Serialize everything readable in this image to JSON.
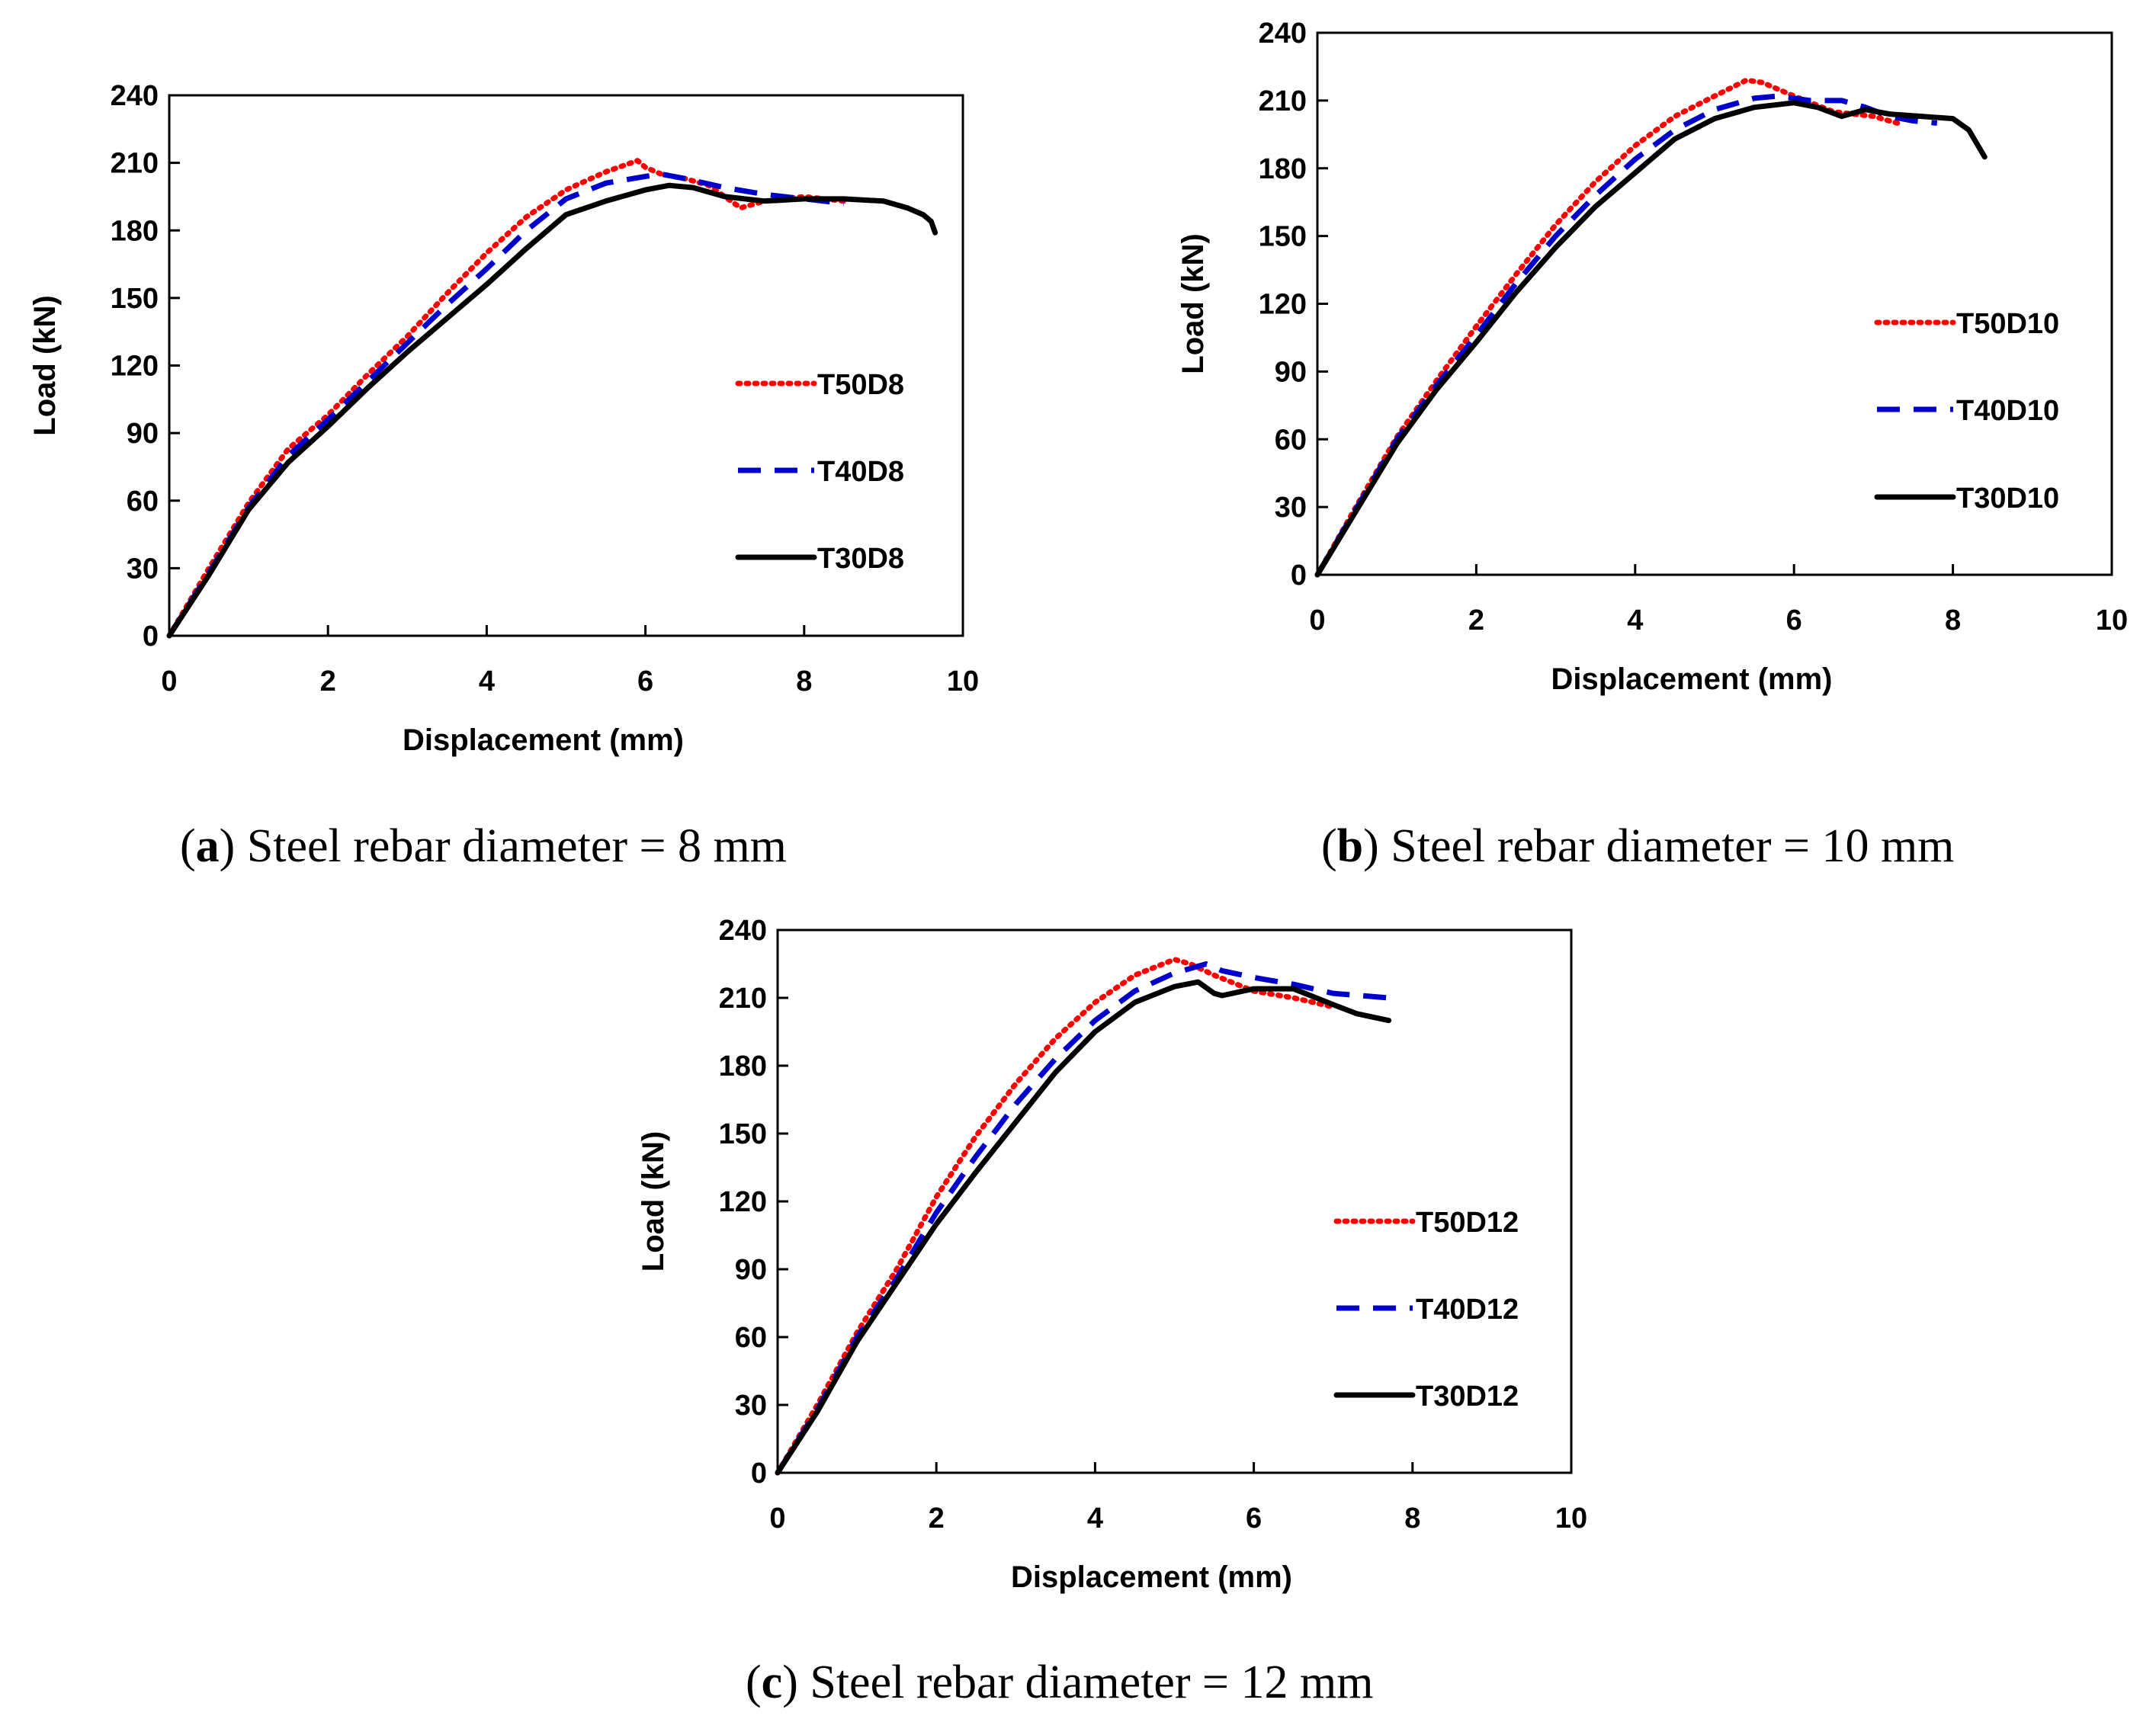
{
  "figure": {
    "captions": [
      {
        "letter": "a",
        "text": "Steel rebar diameter = 8 mm"
      },
      {
        "letter": "b",
        "text": "Steel rebar diameter = 10 mm"
      },
      {
        "letter": "c",
        "text": "Steel rebar diameter = 12 mm"
      }
    ]
  },
  "chart_data": [
    {
      "type": "line",
      "id": "a",
      "xlabel": "Displacement (mm)",
      "ylabel": "Load (kN)",
      "xlim": [
        0,
        10
      ],
      "ylim": [
        0,
        240
      ],
      "xticks": [
        0,
        2,
        4,
        6,
        8,
        10
      ],
      "yticks": [
        0,
        30,
        60,
        90,
        120,
        150,
        180,
        210,
        240
      ],
      "legend_position": "right",
      "series": [
        {
          "name": "T50D8",
          "color": "#ff0000",
          "style": "dotted",
          "x": [
            0,
            0.5,
            1.0,
            1.5,
            2.0,
            2.5,
            3.0,
            3.5,
            4.0,
            4.5,
            5.0,
            5.5,
            5.9,
            6.0,
            6.2,
            6.5,
            6.8,
            7.0,
            7.2,
            7.5,
            8.0,
            8.5
          ],
          "y": [
            0,
            30,
            59,
            83,
            98,
            116,
            133,
            152,
            170,
            186,
            198,
            206,
            211,
            208,
            205,
            203,
            200,
            195,
            190,
            193,
            195,
            193
          ]
        },
        {
          "name": "T40D8",
          "color": "#0000cc",
          "style": "dashed",
          "x": [
            0,
            0.5,
            1.0,
            1.5,
            2.0,
            2.5,
            3.0,
            3.5,
            4.0,
            4.5,
            5.0,
            5.5,
            6.0,
            6.2,
            6.5,
            7.0,
            7.5,
            8.0,
            8.5
          ],
          "y": [
            0,
            28,
            57,
            80,
            96,
            113,
            130,
            147,
            163,
            180,
            194,
            201,
            204,
            205,
            203,
            199,
            196,
            194,
            192
          ]
        },
        {
          "name": "T30D8",
          "color": "#000000",
          "style": "solid",
          "x": [
            0,
            0.5,
            1.0,
            1.5,
            2.0,
            2.5,
            3.0,
            3.5,
            4.0,
            4.5,
            4.8,
            5.0,
            5.5,
            6.0,
            6.3,
            6.6,
            7.0,
            7.5,
            8.0,
            8.5,
            9.0,
            9.3,
            9.5,
            9.6,
            9.65
          ],
          "y": [
            0,
            27,
            56,
            77,
            93,
            110,
            126,
            141,
            156,
            172,
            181,
            187,
            193,
            198,
            200,
            199,
            195,
            193,
            194,
            194,
            193,
            190,
            187,
            184,
            179
          ]
        }
      ]
    },
    {
      "type": "line",
      "id": "b",
      "xlabel": "Displacement (mm)",
      "ylabel": "Load (kN)",
      "xlim": [
        0,
        10
      ],
      "ylim": [
        0,
        240
      ],
      "xticks": [
        0,
        2,
        4,
        6,
        8,
        10
      ],
      "yticks": [
        0,
        30,
        60,
        90,
        120,
        150,
        180,
        210,
        240
      ],
      "legend_position": "right",
      "series": [
        {
          "name": "T50D10",
          "color": "#ff0000",
          "style": "dotted",
          "x": [
            0,
            0.5,
            1.0,
            1.5,
            2.0,
            2.5,
            3.0,
            3.5,
            4.0,
            4.5,
            5.0,
            5.4,
            5.6,
            6.0,
            6.5,
            7.0,
            7.3
          ],
          "y": [
            0,
            31,
            61,
            86,
            110,
            133,
            155,
            174,
            190,
            203,
            212,
            219,
            218,
            212,
            205,
            203,
            200
          ]
        },
        {
          "name": "T40D10",
          "color": "#0000cc",
          "style": "dashed",
          "x": [
            0,
            0.5,
            1.0,
            1.5,
            2.0,
            2.5,
            3.0,
            3.5,
            4.0,
            4.5,
            5.0,
            5.5,
            5.8,
            6.2,
            6.6,
            6.9,
            7.2,
            7.5,
            7.8
          ],
          "y": [
            0,
            30,
            60,
            84,
            106,
            129,
            150,
            168,
            184,
            197,
            206,
            211,
            212,
            210,
            210,
            207,
            203,
            201,
            200
          ]
        },
        {
          "name": "T30D10",
          "color": "#000000",
          "style": "solid",
          "x": [
            0,
            0.5,
            1.0,
            1.5,
            2.0,
            2.5,
            3.0,
            3.5,
            4.0,
            4.5,
            5.0,
            5.5,
            6.0,
            6.3,
            6.6,
            6.8,
            6.9,
            7.2,
            7.6,
            8.0,
            8.2,
            8.4
          ],
          "y": [
            0,
            29,
            58,
            82,
            103,
            125,
            145,
            163,
            178,
            193,
            202,
            207,
            209,
            207,
            203,
            205,
            206,
            204,
            203,
            202,
            197,
            185
          ]
        }
      ]
    },
    {
      "type": "line",
      "id": "c",
      "xlabel": "Displacement (mm)",
      "ylabel": "Load (kN)",
      "xlim": [
        0,
        10
      ],
      "ylim": [
        0,
        240
      ],
      "xticks": [
        0,
        2,
        4,
        6,
        8,
        10
      ],
      "yticks": [
        0,
        30,
        60,
        90,
        120,
        150,
        180,
        210,
        240
      ],
      "legend_position": "right",
      "series": [
        {
          "name": "T50D12",
          "color": "#ff0000",
          "style": "dotted",
          "x": [
            0,
            0.5,
            1.0,
            1.5,
            2.0,
            2.5,
            3.0,
            3.5,
            4.0,
            4.5,
            5.0,
            5.2,
            5.5,
            6.0,
            6.5,
            7.0
          ],
          "y": [
            0,
            30,
            62,
            90,
            122,
            149,
            172,
            192,
            208,
            220,
            227,
            225,
            220,
            213,
            210,
            206
          ]
        },
        {
          "name": "T40D12",
          "color": "#0000cc",
          "style": "dashed",
          "x": [
            0,
            0.5,
            1.0,
            1.5,
            2.0,
            2.5,
            3.0,
            3.5,
            4.0,
            4.5,
            5.0,
            5.4,
            5.6,
            6.0,
            6.5,
            7.0,
            7.7
          ],
          "y": [
            0,
            28,
            60,
            86,
            115,
            140,
            163,
            183,
            200,
            213,
            221,
            225,
            222,
            219,
            216,
            212,
            210
          ]
        },
        {
          "name": "T30D12",
          "color": "#000000",
          "style": "solid",
          "x": [
            0,
            0.5,
            1.0,
            1.5,
            2.0,
            2.5,
            3.0,
            3.5,
            4.0,
            4.5,
            5.0,
            5.3,
            5.5,
            5.6,
            6.0,
            6.5,
            7.0,
            7.3,
            7.7
          ],
          "y": [
            0,
            27,
            58,
            84,
            110,
            133,
            155,
            177,
            195,
            208,
            215,
            217,
            212,
            211,
            214,
            214,
            207,
            203,
            200
          ]
        }
      ]
    }
  ]
}
